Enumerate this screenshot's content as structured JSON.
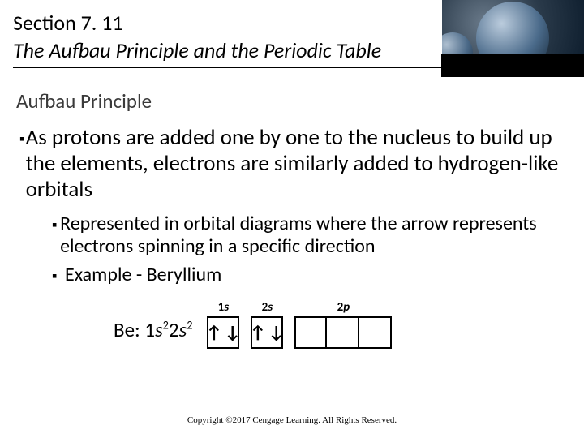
{
  "header": {
    "section_label": "Section 7. 11",
    "title": "The Aufbau Principle and the Periodic Table"
  },
  "subheading": "Aufbau Principle",
  "bullets": {
    "level1": [
      "As protons are added one by one to the nucleus to build up the elements, electrons are similarly added to hydrogen-like orbitals"
    ],
    "level2": [
      "Represented in orbital diagrams where the arrow represents electrons spinning in a specific direction",
      "Example - Beryllium"
    ]
  },
  "diagram": {
    "config_prefix": "Be: ",
    "config_terms": [
      "1",
      "s",
      "2",
      "2",
      "s",
      "2"
    ],
    "orbitals": [
      {
        "label_num": "1",
        "label_letter": "s",
        "boxes": [
          {
            "arrows": [
              "↑",
              "↓"
            ]
          }
        ]
      },
      {
        "label_num": "2",
        "label_letter": "s",
        "boxes": [
          {
            "arrows": [
              "↑",
              "↓"
            ]
          }
        ]
      },
      {
        "label_num": "2",
        "label_letter": "p",
        "boxes": [
          {
            "arrows": []
          },
          {
            "arrows": []
          },
          {
            "arrows": []
          }
        ]
      }
    ]
  },
  "copyright": "Copyright ©2017 Cengage Learning. All Rights Reserved.",
  "style": {
    "bullet_glyph": "▪"
  }
}
